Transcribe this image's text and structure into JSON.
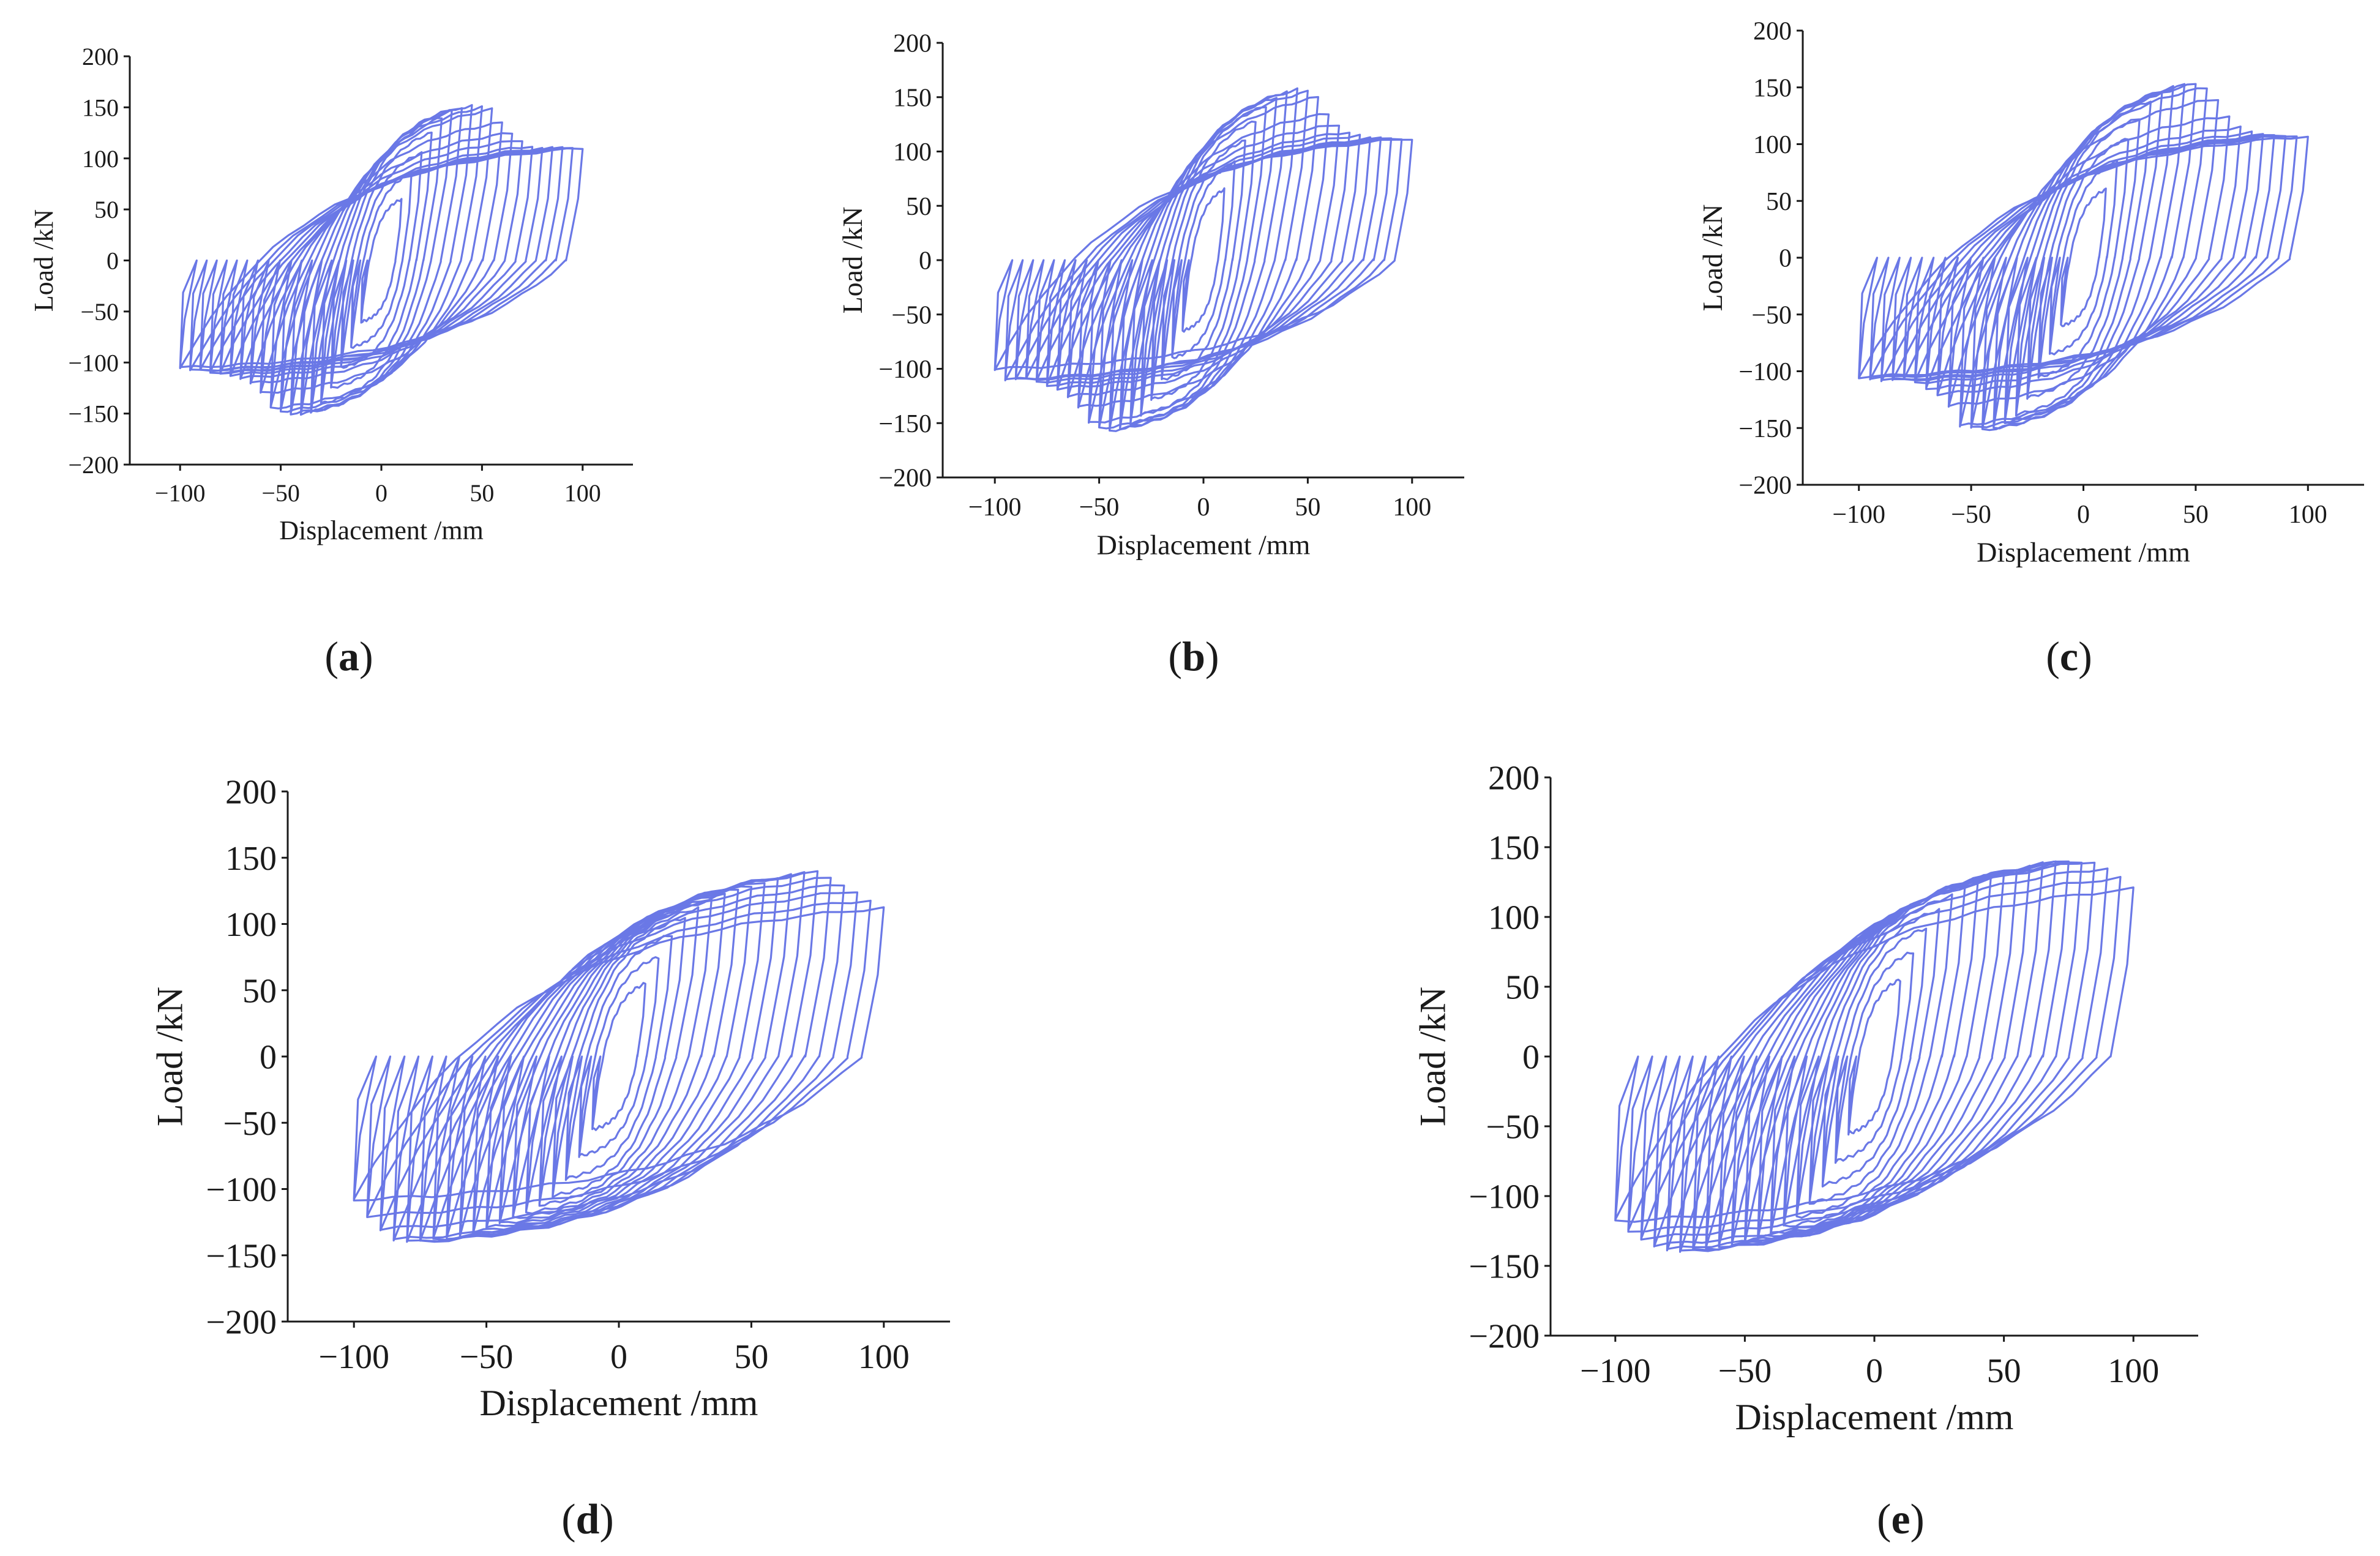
{
  "figure": {
    "line_color": "#6a78e6",
    "axis_color": "#1a1a1a"
  },
  "chart_data": [
    {
      "panel": "a",
      "caption_letter": "a",
      "type": "line",
      "title": "",
      "xlabel": "Displacement /mm",
      "ylabel": "Load /kN",
      "xlim": [
        -125,
        125
      ],
      "ylim": [
        -200,
        200
      ],
      "xticks": [
        -100,
        -50,
        0,
        50,
        100
      ],
      "yticks": [
        200,
        150,
        100,
        50,
        0,
        -50,
        -100,
        -150,
        -200
      ],
      "grid": false,
      "series": [
        {
          "name": "hysteresis",
          "amplitudes": [
            10,
            15,
            20,
            25,
            30,
            35,
            40,
            45,
            50,
            55,
            60,
            65,
            70,
            75,
            80,
            85,
            90,
            95,
            100
          ],
          "peak_load_pos": [
            60,
            85,
            105,
            125,
            140,
            148,
            150,
            152,
            150,
            148,
            135,
            125,
            118,
            112,
            110,
            110,
            110,
            110,
            110
          ],
          "peak_load_neg": [
            -60,
            -85,
            -105,
            -125,
            -140,
            -148,
            -150,
            -150,
            -148,
            -145,
            -130,
            -120,
            -115,
            -112,
            -110,
            -110,
            -108,
            -108,
            -105
          ]
        }
      ]
    },
    {
      "panel": "b",
      "caption_letter": "b",
      "type": "line",
      "title": "",
      "xlabel": "Displacement /mm",
      "ylabel": "Load /kN",
      "xlim": [
        -125,
        125
      ],
      "ylim": [
        -200,
        200
      ],
      "xticks": [
        -100,
        -50,
        0,
        50,
        100
      ],
      "yticks": [
        200,
        150,
        100,
        50,
        0,
        -50,
        -100,
        -150,
        -200
      ],
      "grid": false,
      "series": [
        {
          "name": "hysteresis",
          "amplitudes": [
            10,
            15,
            20,
            25,
            30,
            35,
            40,
            45,
            50,
            55,
            60,
            65,
            70,
            75,
            80,
            85,
            90,
            95,
            100
          ],
          "peak_load_pos": [
            65,
            90,
            110,
            128,
            142,
            150,
            155,
            157,
            155,
            150,
            135,
            125,
            118,
            115,
            112,
            112,
            112,
            112,
            112
          ],
          "peak_load_neg": [
            -65,
            -90,
            -110,
            -128,
            -142,
            -150,
            -155,
            -157,
            -155,
            -150,
            -135,
            -125,
            -118,
            -115,
            -112,
            -110,
            -110,
            -110,
            -100
          ]
        }
      ]
    },
    {
      "panel": "c",
      "caption_letter": "c",
      "type": "line",
      "title": "",
      "xlabel": "Displacement /mm",
      "ylabel": "Load /kN",
      "xlim": [
        -125,
        125
      ],
      "ylim": [
        -200,
        200
      ],
      "xticks": [
        -100,
        -50,
        0,
        50,
        100
      ],
      "yticks": [
        200,
        150,
        100,
        50,
        0,
        -50,
        -100,
        -150,
        -200
      ],
      "grid": false,
      "series": [
        {
          "name": "hysteresis",
          "amplitudes": [
            10,
            15,
            20,
            25,
            30,
            35,
            40,
            45,
            50,
            55,
            60,
            65,
            70,
            75,
            80,
            85,
            90,
            95,
            100
          ],
          "peak_load_pos": [
            60,
            85,
            105,
            123,
            138,
            145,
            150,
            152,
            153,
            150,
            140,
            125,
            115,
            110,
            108,
            108,
            108,
            108,
            107
          ],
          "peak_load_neg": [
            -60,
            -85,
            -105,
            -123,
            -138,
            -145,
            -150,
            -152,
            -150,
            -148,
            -130,
            -120,
            -115,
            -110,
            -108,
            -108,
            -108,
            -106,
            -105
          ]
        }
      ]
    },
    {
      "panel": "d",
      "caption_letter": "d",
      "type": "line",
      "title": "",
      "xlabel": "Displacement /mm",
      "ylabel": "Load /kN",
      "xlim": [
        -125,
        125
      ],
      "ylim": [
        -200,
        200
      ],
      "xticks": [
        -100,
        -50,
        0,
        50,
        100
      ],
      "yticks": [
        200,
        150,
        100,
        50,
        0,
        -50,
        -100,
        -150,
        -200
      ],
      "grid": false,
      "series": [
        {
          "name": "hysteresis",
          "amplitudes": [
            10,
            15,
            20,
            25,
            30,
            35,
            40,
            45,
            50,
            55,
            60,
            65,
            70,
            75,
            80,
            85,
            90,
            95,
            100
          ],
          "peak_load_pos": [
            55,
            75,
            92,
            105,
            112,
            118,
            122,
            126,
            129,
            132,
            135,
            137,
            138,
            139,
            135,
            130,
            125,
            118,
            112
          ],
          "peak_load_neg": [
            -55,
            -75,
            -92,
            -105,
            -112,
            -118,
            -122,
            -126,
            -129,
            -132,
            -135,
            -137,
            -138,
            -140,
            -140,
            -138,
            -130,
            -120,
            -108
          ]
        }
      ]
    },
    {
      "panel": "e",
      "caption_letter": "e",
      "type": "line",
      "title": "",
      "xlabel": "Displacement /mm",
      "ylabel": "Load /kN",
      "xlim": [
        -125,
        125
      ],
      "ylim": [
        -200,
        200
      ],
      "xticks": [
        -100,
        -50,
        0,
        50,
        100
      ],
      "yticks": [
        200,
        150,
        100,
        50,
        0,
        -50,
        -100,
        -150,
        -200
      ],
      "grid": false,
      "series": [
        {
          "name": "hysteresis",
          "amplitudes": [
            10,
            15,
            20,
            25,
            30,
            35,
            40,
            45,
            50,
            55,
            60,
            65,
            70,
            75,
            80,
            85,
            90,
            95,
            100
          ],
          "peak_load_pos": [
            55,
            75,
            92,
            105,
            115,
            122,
            127,
            130,
            132,
            134,
            136,
            138,
            139,
            140,
            140,
            140,
            135,
            128,
            120
          ],
          "peak_load_neg": [
            -55,
            -75,
            -92,
            -105,
            -115,
            -122,
            -127,
            -130,
            -132,
            -134,
            -136,
            -138,
            -139,
            -140,
            -138,
            -135,
            -130,
            -125,
            -118
          ]
        }
      ]
    }
  ]
}
